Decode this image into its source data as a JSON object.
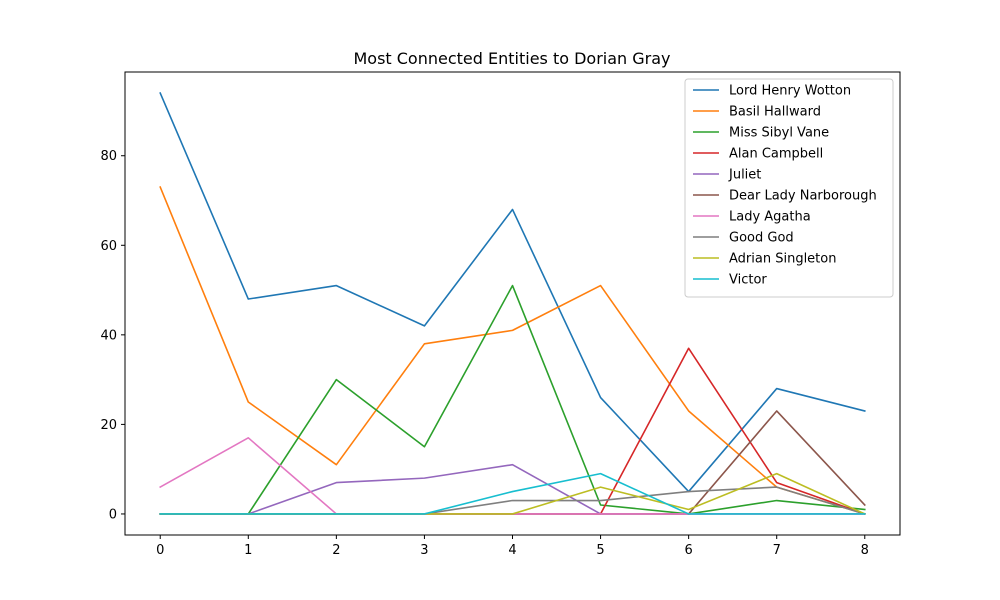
{
  "chart_data": {
    "type": "line",
    "title": "Most Connected Entities to Dorian Gray",
    "xlabel": "",
    "ylabel": "",
    "x": [
      0,
      1,
      2,
      3,
      4,
      5,
      6,
      7,
      8
    ],
    "xlim": [
      -0.4,
      8.4
    ],
    "ylim": [
      -4.7,
      98.7
    ],
    "xticks": [
      0,
      1,
      2,
      3,
      4,
      5,
      6,
      7,
      8
    ],
    "yticks": [
      0,
      20,
      40,
      60,
      80
    ],
    "grid": false,
    "legend_position": "top-right",
    "series": [
      {
        "name": "Lord Henry Wotton",
        "color": "#1f77b4",
        "values": [
          94,
          48,
          51,
          42,
          68,
          26,
          5,
          28,
          23
        ]
      },
      {
        "name": "Basil Hallward",
        "color": "#ff7f0e",
        "values": [
          73,
          25,
          11,
          38,
          41,
          51,
          23,
          6,
          0
        ]
      },
      {
        "name": "Miss Sibyl Vane",
        "color": "#2ca02c",
        "values": [
          0,
          0,
          30,
          15,
          51,
          2,
          0,
          3,
          1
        ]
      },
      {
        "name": "Alan Campbell",
        "color": "#d62728",
        "values": [
          0,
          0,
          0,
          0,
          0,
          0,
          37,
          7,
          0
        ]
      },
      {
        "name": "Juliet",
        "color": "#9467bd",
        "values": [
          0,
          0,
          7,
          8,
          11,
          0,
          0,
          0,
          0
        ]
      },
      {
        "name": "Dear Lady Narborough",
        "color": "#8c564b",
        "values": [
          0,
          0,
          0,
          0,
          0,
          0,
          0,
          23,
          2
        ]
      },
      {
        "name": "Lady Agatha",
        "color": "#e377c2",
        "values": [
          6,
          17,
          0,
          0,
          0,
          0,
          0,
          0,
          0
        ]
      },
      {
        "name": "Good God",
        "color": "#7f7f7f",
        "values": [
          0,
          0,
          0,
          0,
          3,
          3,
          5,
          6,
          0
        ]
      },
      {
        "name": "Adrian Singleton",
        "color": "#bcbd22",
        "values": [
          0,
          0,
          0,
          0,
          0,
          6,
          1,
          9,
          0
        ]
      },
      {
        "name": "Victor",
        "color": "#17becf",
        "values": [
          0,
          0,
          0,
          0,
          5,
          9,
          0,
          0,
          0
        ]
      }
    ]
  }
}
